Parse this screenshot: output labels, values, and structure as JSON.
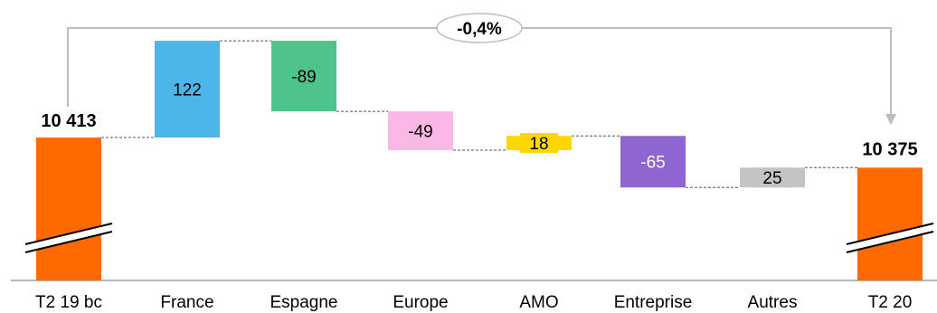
{
  "chart_data": {
    "type": "waterfall",
    "categories": [
      "T2 19 bc",
      "France",
      "Espagne",
      "Europe",
      "AMO",
      "Entreprise",
      "Autres",
      "T2 20"
    ],
    "start": {
      "label": "T2 19 bc",
      "value": 10413,
      "display": "10 413"
    },
    "end": {
      "label": "T2 20",
      "value": 10375,
      "display": "10 375"
    },
    "deltas": [
      {
        "label": "France",
        "value": 122,
        "display": "122",
        "color": "#4db6e8"
      },
      {
        "label": "Espagne",
        "value": -89,
        "display": "-89",
        "color": "#4ec38a"
      },
      {
        "label": "Europe",
        "value": -49,
        "display": "-49",
        "color": "#fbb8e6"
      },
      {
        "label": "AMO",
        "value": 18,
        "display": "18",
        "color": "#ffd700"
      },
      {
        "label": "Entreprise",
        "value": -65,
        "display": "-65",
        "color": "#8f66d1"
      },
      {
        "label": "Autres",
        "value": 25,
        "display": "25",
        "color": "#c4c4c4"
      }
    ],
    "total_color": "#ff6a00",
    "axis_break": true,
    "change_badge": "-0,4%"
  }
}
